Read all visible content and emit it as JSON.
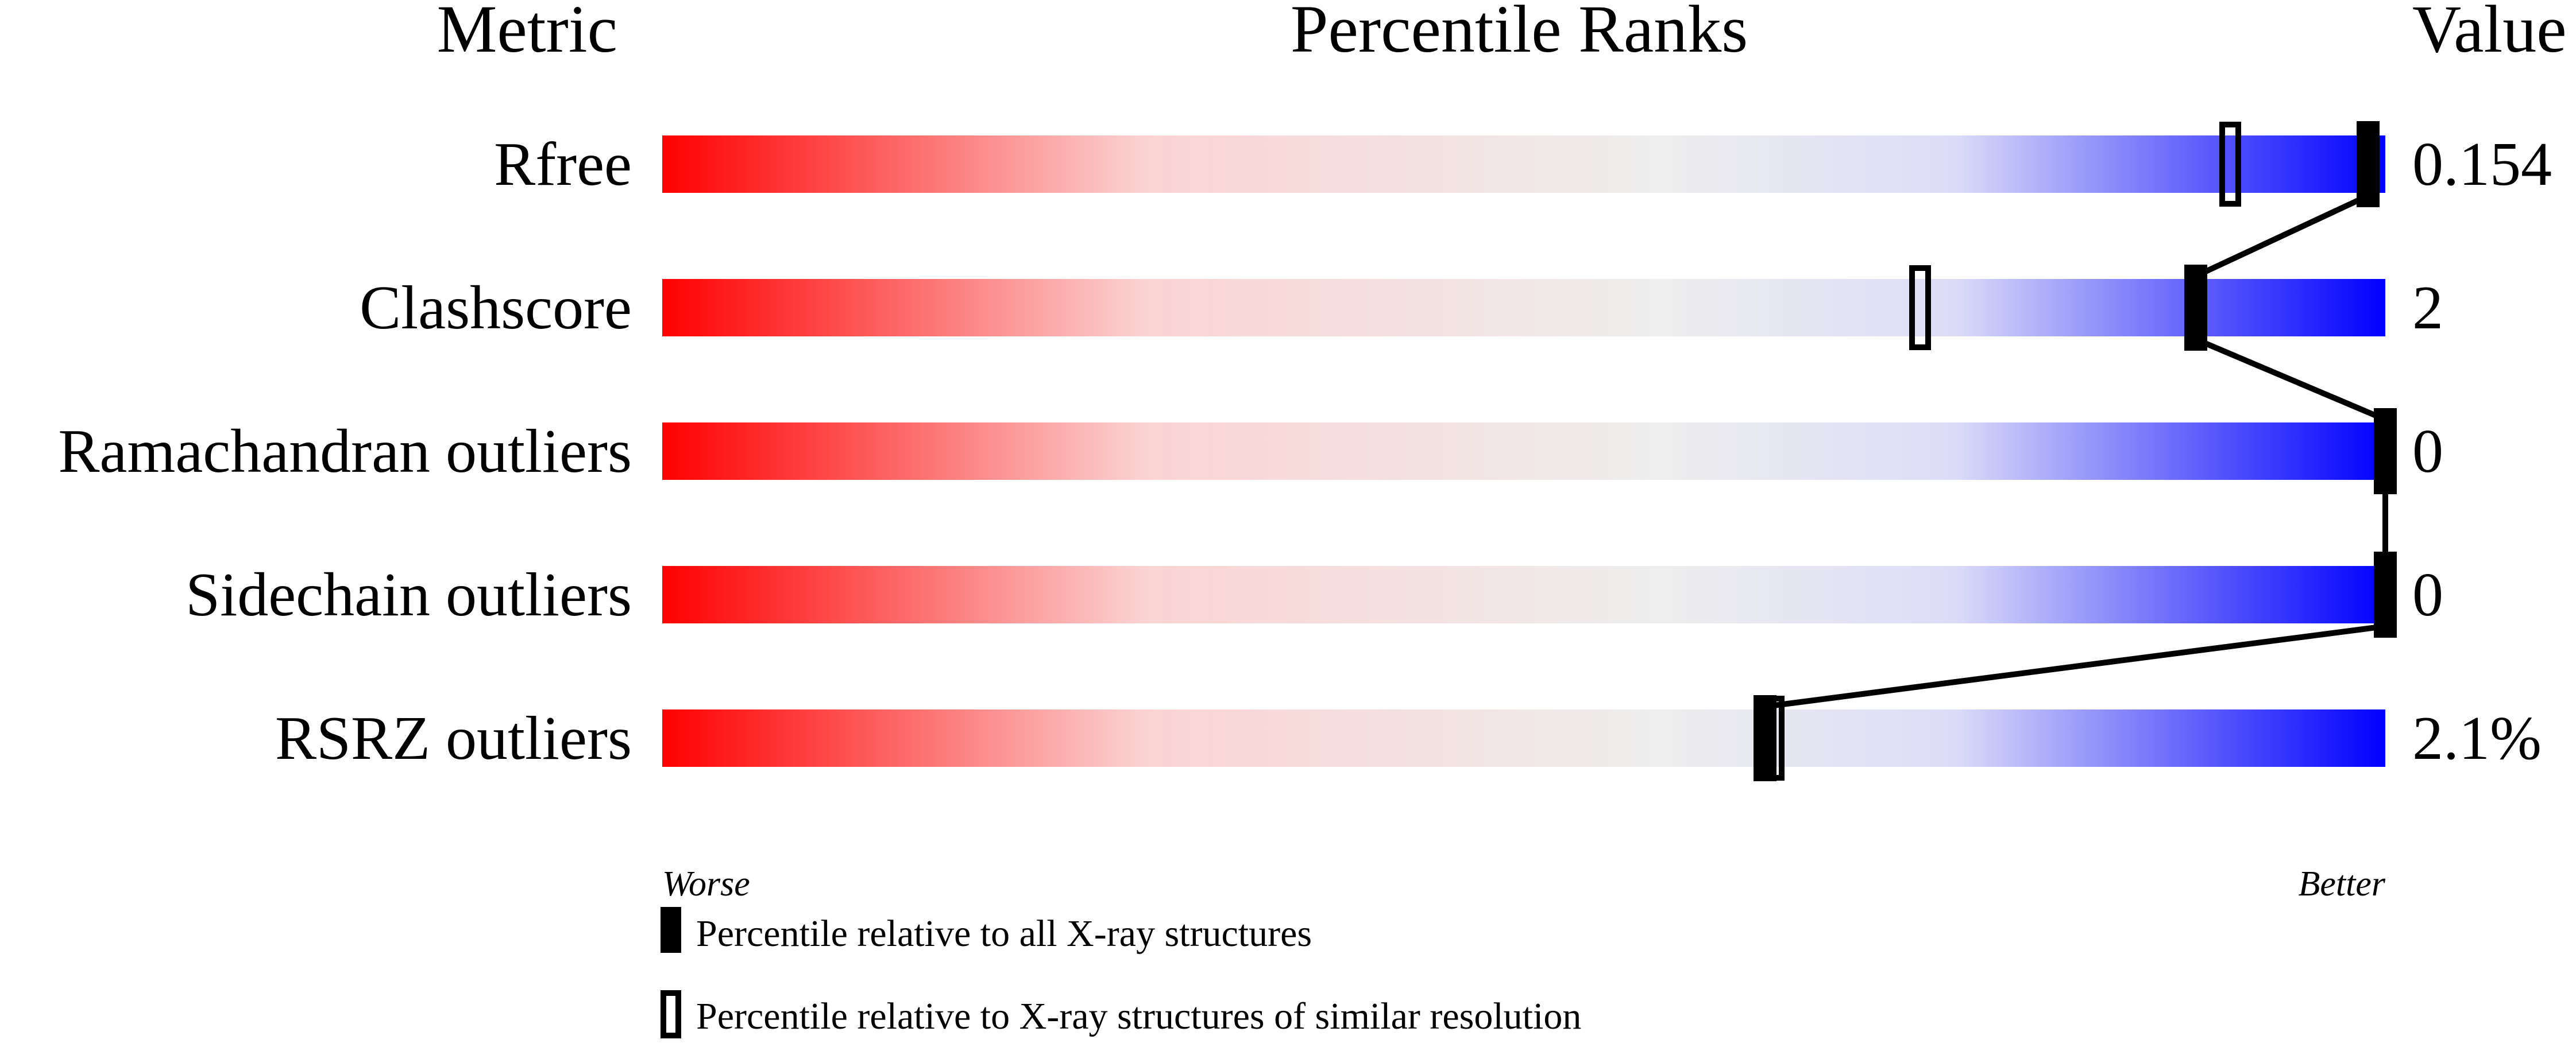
{
  "chart_data": {
    "type": "percentile-bar",
    "headers": {
      "metric": "Metric",
      "title": "Percentile Ranks",
      "value": "Value"
    },
    "xlim": [
      0,
      100
    ],
    "axis_labels": {
      "left": "Worse",
      "right": "Better"
    },
    "gradient_colors": [
      "#ff0000",
      "#fbd3d3",
      "#eeeeee",
      "#dcdcf8",
      "#0000ff"
    ],
    "metrics": [
      {
        "name": "Rfree",
        "value": "0.154",
        "percentile_all": 99,
        "percentile_similar": 91
      },
      {
        "name": "Clashscore",
        "value": "2",
        "percentile_all": 89,
        "percentile_similar": 73
      },
      {
        "name": "Ramachandran outliers",
        "value": "0",
        "percentile_all": 100,
        "percentile_similar": 100
      },
      {
        "name": "Sidechain outliers",
        "value": "0",
        "percentile_all": 100,
        "percentile_similar": 100
      },
      {
        "name": "RSRZ outliers",
        "value": "2.1%",
        "percentile_all": 64,
        "percentile_similar": 64.5
      }
    ],
    "legend": [
      {
        "marker": "filled",
        "label": "Percentile relative to all X-ray structures"
      },
      {
        "marker": "open",
        "label": "Percentile relative to X-ray structures of similar resolution"
      }
    ]
  }
}
